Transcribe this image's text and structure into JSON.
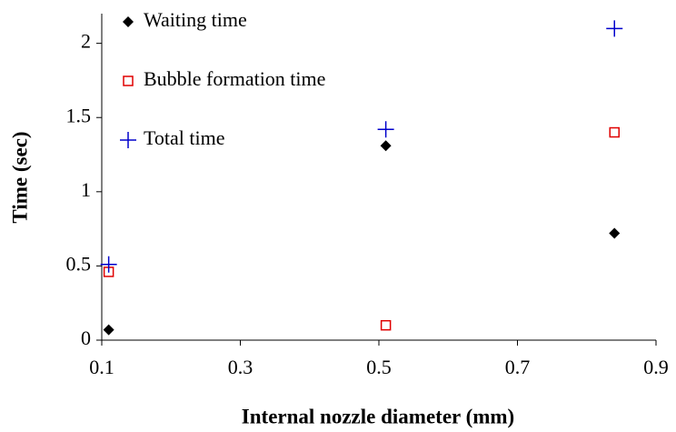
{
  "chart_data": {
    "type": "scatter",
    "x_label": "Internal nozzle diameter (mm)",
    "y_label": "Time (sec)",
    "xlim": [
      0.1,
      0.9
    ],
    "xticks": [
      0.1,
      0.3,
      0.5,
      0.7,
      0.9
    ],
    "ylim": [
      0,
      2.2
    ],
    "yticks": [
      0,
      0.5,
      1,
      1.5,
      2
    ],
    "legend": "top-left",
    "series": [
      {
        "name": "Waiting time",
        "color": "#000000",
        "marker": "diamond",
        "x": [
          0.11,
          0.51,
          0.84
        ],
        "values": [
          0.07,
          1.31,
          0.72
        ]
      },
      {
        "name": "Bubble formation time",
        "color": "#e00000",
        "marker": "square",
        "x": [
          0.11,
          0.51,
          0.84
        ],
        "values": [
          0.46,
          0.1,
          1.4
        ]
      },
      {
        "name": "Total time",
        "color": "#0000cc",
        "marker": "plus",
        "x": [
          0.11,
          0.51,
          0.84
        ],
        "values": [
          0.51,
          1.42,
          2.1
        ]
      }
    ]
  }
}
